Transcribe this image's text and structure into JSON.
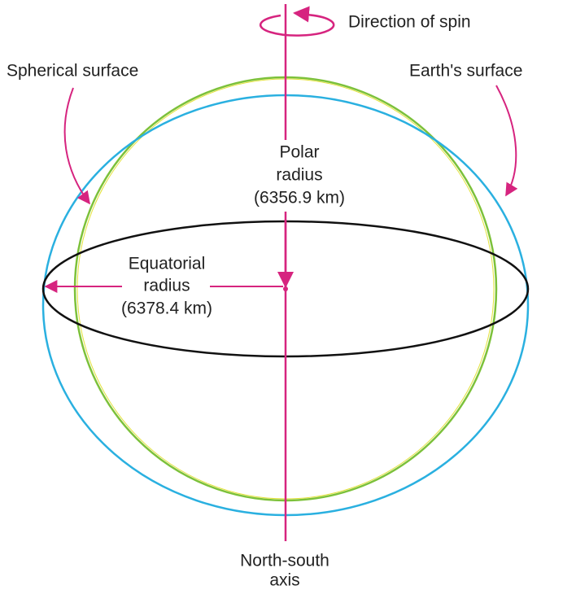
{
  "labels": {
    "direction_of_spin": "Direction of spin",
    "spherical_surface": "Spherical surface",
    "earths_surface": "Earth's surface",
    "polar_radius": [
      "Polar",
      "radius",
      "(6356.9 km)"
    ],
    "equatorial_radius": [
      "Equatorial",
      "radius",
      "(6378.4 km)"
    ],
    "north_south_axis": [
      "North-south",
      "axis"
    ]
  }
}
